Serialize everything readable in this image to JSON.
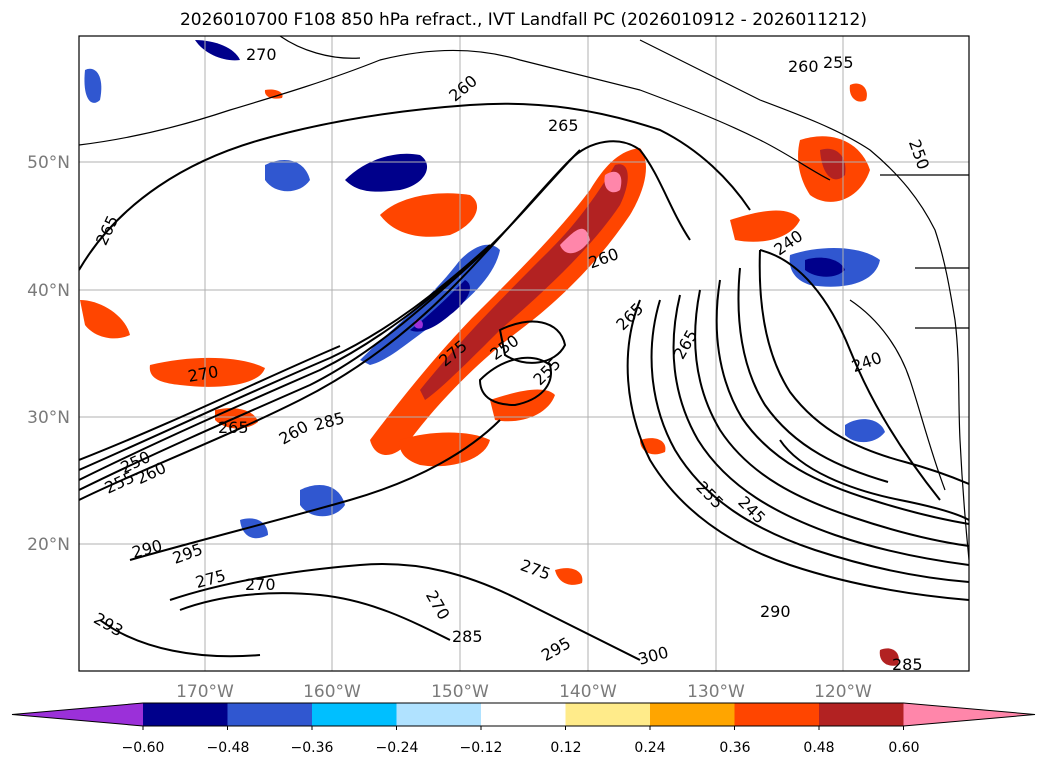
{
  "title": "2026010700 F108 850 hPa refract., IVT Landfall PC (2026010912 - 2026011212)",
  "longitude_labels": [
    "170°W",
    "160°W",
    "150°W",
    "140°W",
    "130°W",
    "120°W"
  ],
  "latitude_labels": [
    "50°N",
    "40°N",
    "30°N",
    "20°N"
  ],
  "colorbar": {
    "tick_labels": [
      "−0.60",
      "−0.48",
      "−0.36",
      "−0.24",
      "−0.12",
      "0.12",
      "0.24",
      "0.36",
      "0.48",
      "0.60"
    ],
    "colors": [
      "#9b30d9",
      "#00008b",
      "#3057d0",
      "#00bfff",
      "#b0e2ff",
      "#ffffff",
      "#ffeb8a",
      "#ffa500",
      "#ff4500",
      "#b22222",
      "#ff86aa"
    ]
  },
  "contour_labels": [
    "270",
    "260",
    "265",
    "255",
    "260",
    "265",
    "250",
    "240",
    "260",
    "265",
    "265",
    "275",
    "250",
    "255",
    "240",
    "270",
    "265",
    "260",
    "285",
    "255",
    "260",
    "250",
    "290",
    "295",
    "275",
    "270",
    "255",
    "245",
    "270",
    "275",
    "290",
    "293",
    "285",
    "295",
    "300",
    "285"
  ],
  "colors": {
    "grid": "#b0b0b0",
    "contour": "#000000",
    "tick_text": "#7a7a7a"
  }
}
